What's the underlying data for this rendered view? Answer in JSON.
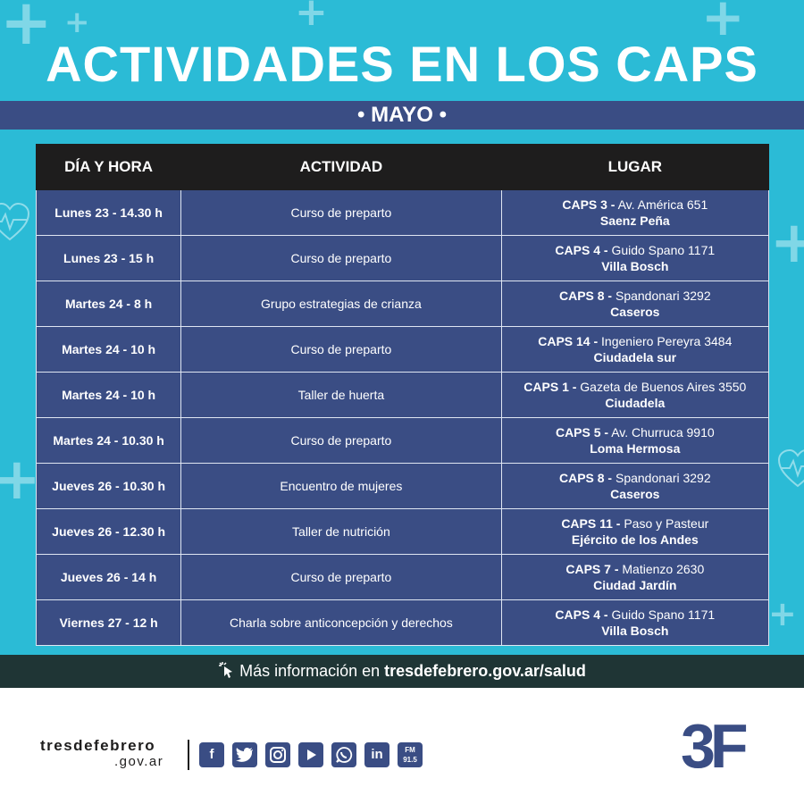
{
  "header": {
    "title": "ACTIVIDADES EN LOS CAPS",
    "month": "• MAYO •"
  },
  "table": {
    "headers": [
      "DÍA Y HORA",
      "ACTIVIDAD",
      "LUGAR"
    ],
    "rows": [
      {
        "dia": "Lunes 23 - 14.30 h",
        "actividad": "Curso de preparto",
        "caps": "CAPS 3 -",
        "direccion": "Av. América 651",
        "localidad": "Saenz Peña"
      },
      {
        "dia": "Lunes 23 - 15 h",
        "actividad": "Curso de preparto",
        "caps": "CAPS 4 -",
        "direccion": "Guido Spano 1171",
        "localidad": "Villa Bosch"
      },
      {
        "dia": "Martes 24 - 8 h",
        "actividad": "Grupo estrategias de crianza",
        "caps": "CAPS 8 -",
        "direccion": "Spandonari 3292",
        "localidad": "Caseros"
      },
      {
        "dia": "Martes 24 - 10 h",
        "actividad": "Curso de preparto",
        "caps": "CAPS 14 -",
        "direccion": "Ingeniero Pereyra 3484",
        "localidad": "Ciudadela sur"
      },
      {
        "dia": "Martes 24 - 10 h",
        "actividad": "Taller de huerta",
        "caps": "CAPS 1 -",
        "direccion": "Gazeta de Buenos Aires 3550",
        "localidad": "Ciudadela"
      },
      {
        "dia": "Martes 24 - 10.30 h",
        "actividad": "Curso de preparto",
        "caps": "CAPS 5 -",
        "direccion": "Av. Churruca 9910",
        "localidad": "Loma Hermosa"
      },
      {
        "dia": "Jueves 26 - 10.30 h",
        "actividad": "Encuentro de mujeres",
        "caps": "CAPS 8 -",
        "direccion": "Spandonari 3292",
        "localidad": "Caseros"
      },
      {
        "dia": "Jueves 26 - 12.30 h",
        "actividad": "Taller de nutrición",
        "caps": "CAPS 11 -",
        "direccion": "Paso y Pasteur",
        "localidad": "Ejército de los Andes"
      },
      {
        "dia": "Jueves 26 - 14 h",
        "actividad": "Curso de preparto",
        "caps": "CAPS 7 -",
        "direccion": "Matienzo 2630",
        "localidad": "Ciudad Jardín"
      },
      {
        "dia": "Viernes 27 - 12 h",
        "actividad": "Charla sobre anticoncepción y derechos",
        "caps": "CAPS 4 -",
        "direccion": "Guido Spano 1171",
        "localidad": "Villa Bosch"
      }
    ]
  },
  "info": {
    "prefix": "Más información en ",
    "url": "tresdefebrero.gov.ar/salud"
  },
  "footer": {
    "brand_top": "tresdefebrero",
    "brand_bottom": ".gov.ar",
    "social_icons": [
      "facebook-icon",
      "twitter-icon",
      "instagram-icon",
      "youtube-icon",
      "whatsapp-icon",
      "linkedin-icon",
      "radio-fm-icon"
    ],
    "radio_label": "FM 91.5",
    "logo_text": "3F"
  },
  "colors": {
    "cyan": "#2bbbd6",
    "navy": "#3a4d84",
    "dark": "#1e1d1d",
    "info_bar": "#1f3535"
  }
}
